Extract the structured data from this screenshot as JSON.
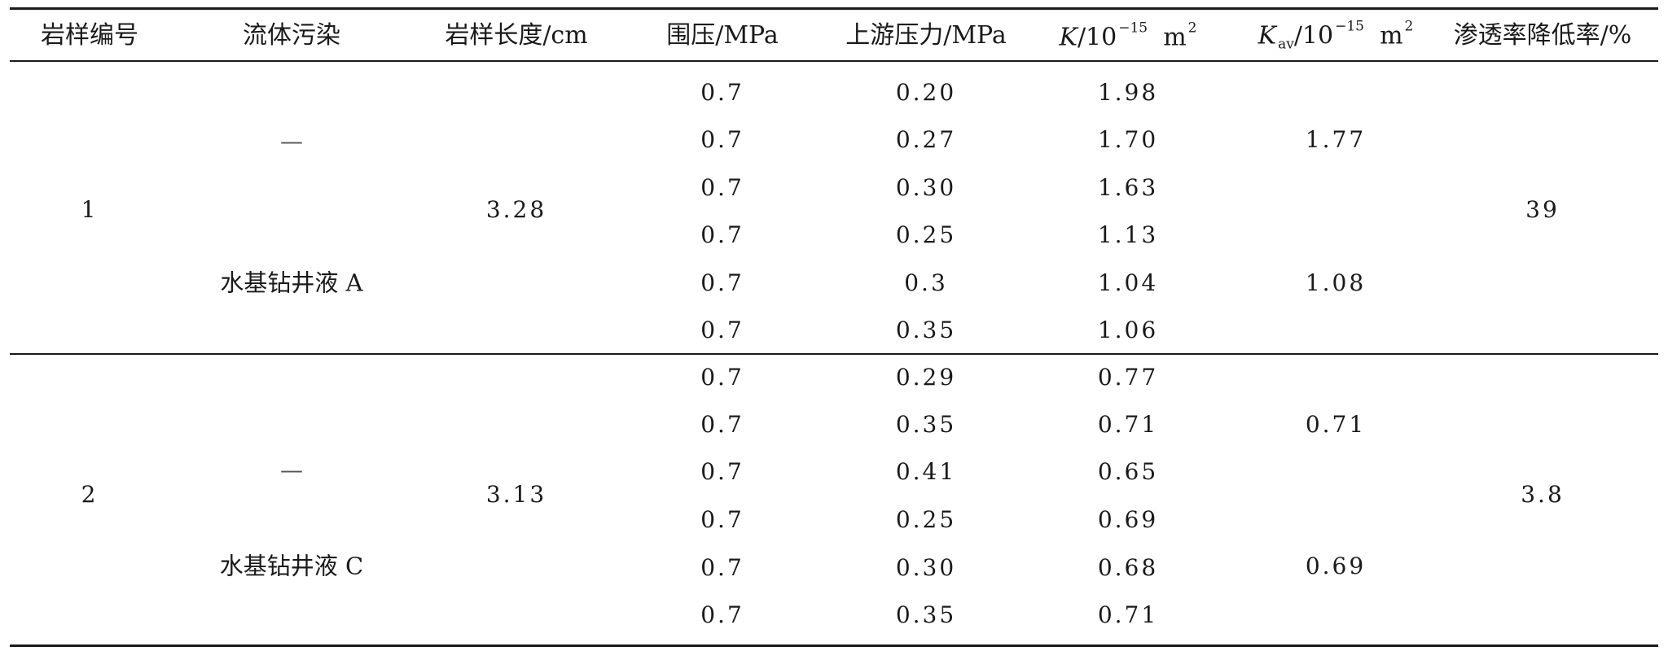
{
  "header": {
    "sample_id": "岩样编号",
    "fluid": "流体污染",
    "length": "岩样长度/cm",
    "confining": "围压/MPa",
    "upstream": "上游压力/MPa",
    "k_symbol": "K",
    "k_unit": "/10",
    "k_exp": "−15",
    "k_unit2": "m",
    "k_unit2_exp": "2",
    "kav_symbol": "K",
    "kav_sub": "av",
    "kav_unit": "/10",
    "kav_exp": "−15",
    "kav_unit2": "m",
    "kav_unit2_exp": "2",
    "reduction": "渗透率降低率/%"
  },
  "groups": [
    {
      "sample_id": "1",
      "fluid_before": "—",
      "fluid_after": "水基钻井液 A",
      "length": "3.28",
      "kav_before": "1.77",
      "kav_after": "1.08",
      "reduction": "39",
      "rows": [
        {
          "confining": "0.7",
          "upstream": "0.20",
          "k": "1.98"
        },
        {
          "confining": "0.7",
          "upstream": "0.27",
          "k": "1.70"
        },
        {
          "confining": "0.7",
          "upstream": "0.30",
          "k": "1.63"
        },
        {
          "confining": "0.7",
          "upstream": "0.25",
          "k": "1.13"
        },
        {
          "confining": "0.7",
          "upstream": "0.3",
          "k": "1.04"
        },
        {
          "confining": "0.7",
          "upstream": "0.35",
          "k": "1.06"
        }
      ]
    },
    {
      "sample_id": "2",
      "fluid_before": "—",
      "fluid_after": "水基钻井液 C",
      "length": "3.13",
      "kav_before": "0.71",
      "kav_after": "0.69",
      "reduction": "3.8",
      "rows": [
        {
          "confining": "0.7",
          "upstream": "0.29",
          "k": "0.77"
        },
        {
          "confining": "0.7",
          "upstream": "0.35",
          "k": "0.71"
        },
        {
          "confining": "0.7",
          "upstream": "0.41",
          "k": "0.65"
        },
        {
          "confining": "0.7",
          "upstream": "0.25",
          "k": "0.69"
        },
        {
          "confining": "0.7",
          "upstream": "0.30",
          "k": "0.68"
        },
        {
          "confining": "0.7",
          "upstream": "0.35",
          "k": "0.71"
        }
      ]
    }
  ]
}
